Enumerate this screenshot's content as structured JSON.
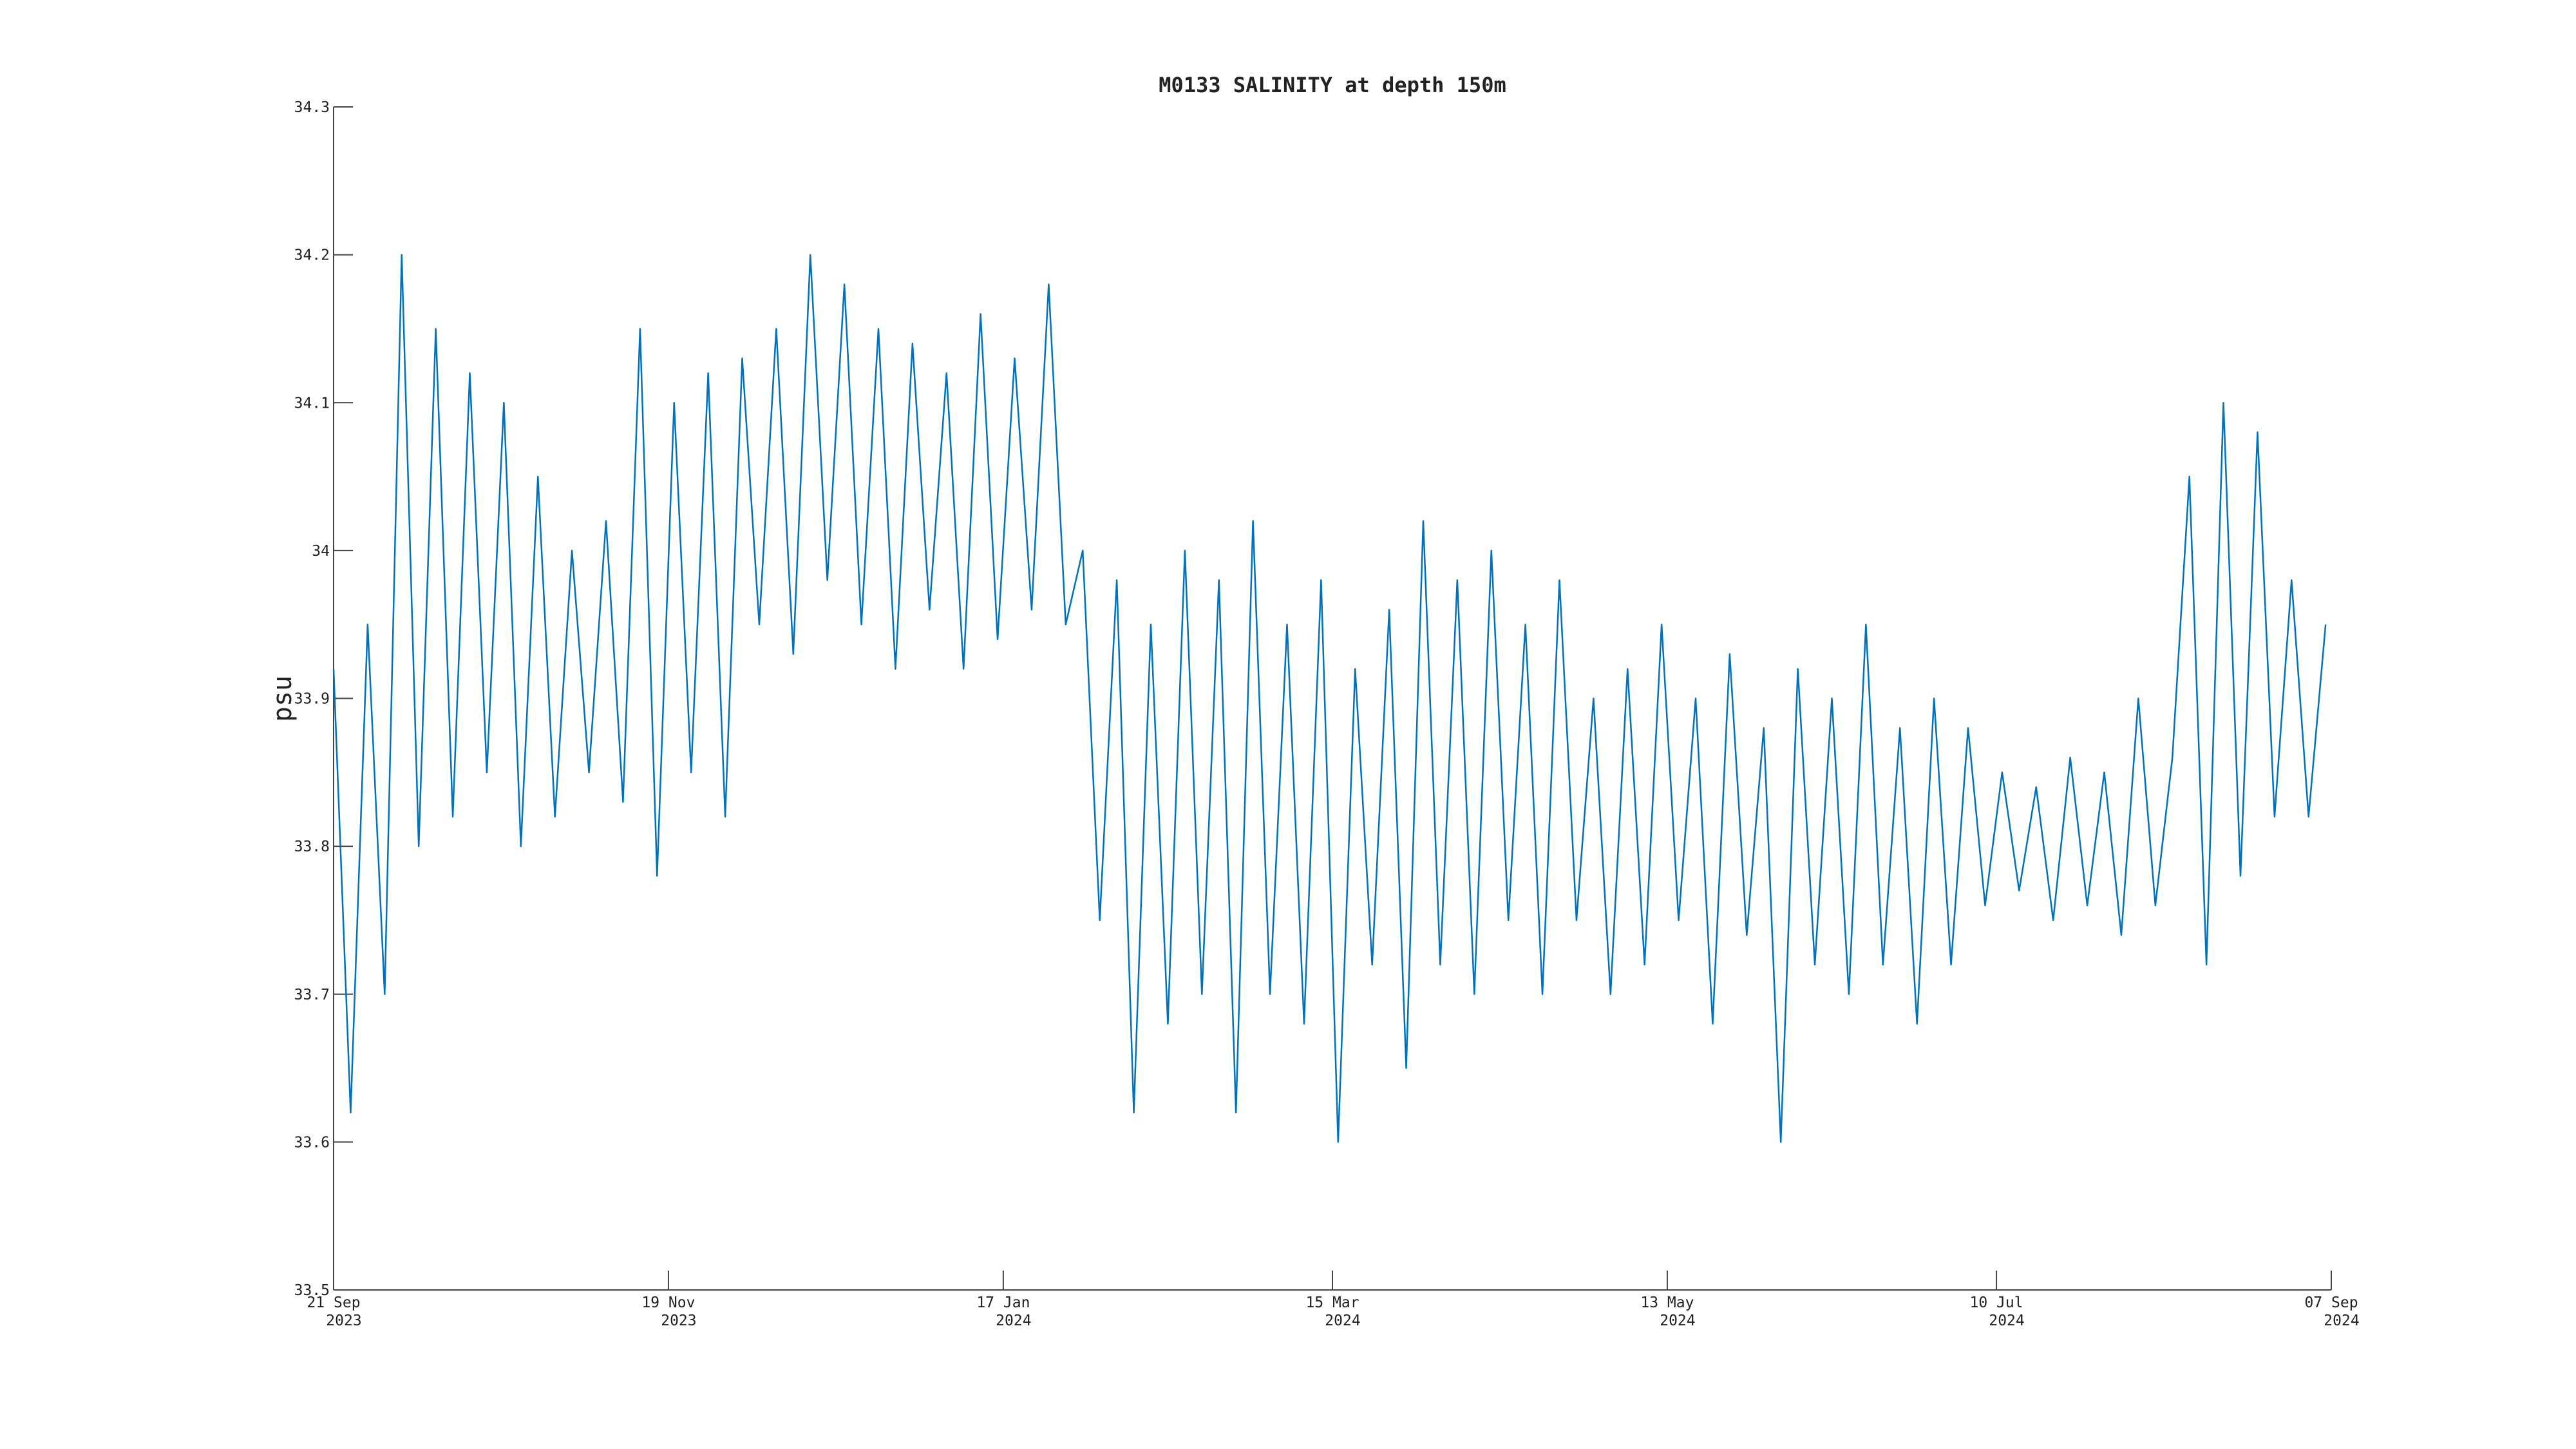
{
  "chart_data": {
    "type": "line",
    "title": "M0133 SALINITY at depth 150m",
    "ylabel": "psu",
    "xlim": [
      "2023-09-21",
      "2024-09-07"
    ],
    "xticks": [
      {
        "value": "2023-09-21",
        "label": "21 Sep 2023"
      },
      {
        "value": "2023-11-19",
        "label": "19 Nov 2023"
      },
      {
        "value": "2024-01-17",
        "label": "17 Jan 2024"
      },
      {
        "value": "2024-03-15",
        "label": "15 Mar 2024"
      },
      {
        "value": "2024-05-13",
        "label": "13 May 2024"
      },
      {
        "value": "2024-07-10",
        "label": "10 Jul 2024"
      },
      {
        "value": "2024-09-07",
        "label": "07 Sep 2024"
      }
    ],
    "ylim": [
      33.5,
      34.3
    ],
    "yticks": [
      33.5,
      33.6,
      33.7,
      33.8,
      33.9,
      34,
      34.1,
      34.2,
      34.3
    ],
    "grid": false,
    "series": [
      {
        "color": "#0072bd",
        "x": [
          "2023-09-21",
          "2023-09-24",
          "2023-09-27",
          "2023-09-30",
          "2023-10-03",
          "2023-10-06",
          "2023-10-09",
          "2023-10-12",
          "2023-10-15",
          "2023-10-18",
          "2023-10-21",
          "2023-10-24",
          "2023-10-27",
          "2023-10-30",
          "2023-11-02",
          "2023-11-05",
          "2023-11-08",
          "2023-11-11",
          "2023-11-14",
          "2023-11-17",
          "2023-11-20",
          "2023-11-23",
          "2023-11-26",
          "2023-11-29",
          "2023-12-02",
          "2023-12-05",
          "2023-12-08",
          "2023-12-11",
          "2023-12-14",
          "2023-12-17",
          "2023-12-20",
          "2023-12-23",
          "2023-12-26",
          "2023-12-29",
          "2024-01-01",
          "2024-01-04",
          "2024-01-07",
          "2024-01-10",
          "2024-01-13",
          "2024-01-16",
          "2024-01-19",
          "2024-01-22",
          "2024-01-25",
          "2024-01-28",
          "2024-01-31",
          "2024-02-03",
          "2024-02-06",
          "2024-02-09",
          "2024-02-12",
          "2024-02-15",
          "2024-02-18",
          "2024-02-21",
          "2024-02-24",
          "2024-02-27",
          "2024-03-01",
          "2024-03-04",
          "2024-03-07",
          "2024-03-10",
          "2024-03-13",
          "2024-03-16",
          "2024-03-19",
          "2024-03-22",
          "2024-03-25",
          "2024-03-28",
          "2024-03-31",
          "2024-04-03",
          "2024-04-06",
          "2024-04-09",
          "2024-04-12",
          "2024-04-15",
          "2024-04-18",
          "2024-04-21",
          "2024-04-24",
          "2024-04-27",
          "2024-04-30",
          "2024-05-03",
          "2024-05-06",
          "2024-05-09",
          "2024-05-12",
          "2024-05-15",
          "2024-05-18",
          "2024-05-21",
          "2024-05-24",
          "2024-05-27",
          "2024-05-30",
          "2024-06-02",
          "2024-06-05",
          "2024-06-08",
          "2024-06-11",
          "2024-06-14",
          "2024-06-17",
          "2024-06-20",
          "2024-06-23",
          "2024-06-26",
          "2024-06-29",
          "2024-07-02",
          "2024-07-05",
          "2024-07-08",
          "2024-07-11",
          "2024-07-14",
          "2024-07-17",
          "2024-07-20",
          "2024-07-23",
          "2024-07-26",
          "2024-07-29",
          "2024-08-01",
          "2024-08-04",
          "2024-08-07",
          "2024-08-10",
          "2024-08-13",
          "2024-08-16",
          "2024-08-19",
          "2024-08-22",
          "2024-08-25",
          "2024-08-28",
          "2024-08-31",
          "2024-09-03",
          "2024-09-06"
        ],
        "values": [
          33.92,
          33.62,
          33.95,
          33.7,
          34.2,
          33.8,
          34.15,
          33.82,
          34.12,
          33.85,
          34.1,
          33.8,
          34.05,
          33.82,
          34.0,
          33.85,
          34.02,
          33.83,
          34.15,
          33.78,
          34.1,
          33.85,
          34.12,
          33.82,
          34.13,
          33.95,
          34.15,
          33.93,
          34.2,
          33.98,
          34.18,
          33.95,
          34.15,
          33.92,
          34.14,
          33.96,
          34.12,
          33.92,
          34.16,
          33.94,
          34.13,
          33.96,
          34.18,
          33.95,
          34.0,
          33.75,
          33.98,
          33.62,
          33.95,
          33.68,
          34.0,
          33.7,
          33.98,
          33.62,
          34.02,
          33.7,
          33.95,
          33.68,
          33.98,
          33.6,
          33.92,
          33.72,
          33.96,
          33.65,
          34.02,
          33.72,
          33.98,
          33.7,
          34.0,
          33.75,
          33.95,
          33.7,
          33.98,
          33.75,
          33.9,
          33.7,
          33.92,
          33.72,
          33.95,
          33.75,
          33.9,
          33.68,
          33.93,
          33.74,
          33.88,
          33.6,
          33.92,
          33.72,
          33.9,
          33.7,
          33.95,
          33.72,
          33.88,
          33.68,
          33.9,
          33.72,
          33.88,
          33.76,
          33.85,
          33.77,
          33.84,
          33.75,
          33.86,
          33.76,
          33.85,
          33.74,
          33.9,
          33.76,
          33.86,
          34.05,
          33.72,
          34.1,
          33.78,
          34.08,
          33.82,
          33.98,
          33.82,
          33.95
        ]
      }
    ]
  }
}
